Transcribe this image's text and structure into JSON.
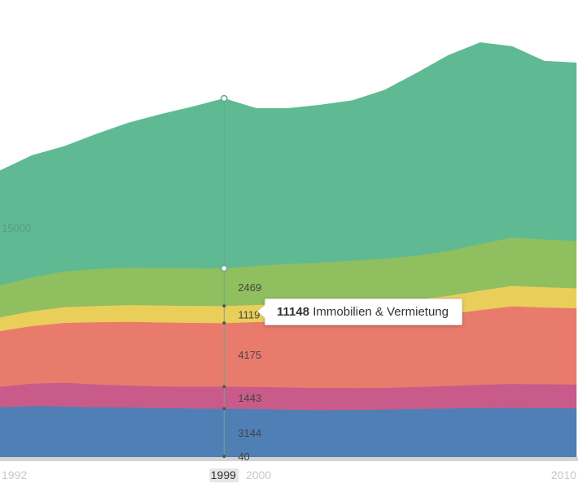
{
  "chart_data": {
    "type": "area",
    "stacked": true,
    "x": [
      1992,
      1993,
      1994,
      1995,
      1996,
      1997,
      1998,
      1999,
      2000,
      2001,
      2002,
      2003,
      2004,
      2005,
      2006,
      2007,
      2008,
      2009,
      2010
    ],
    "x_tick_labels": [
      "1992",
      "1999",
      "2000",
      "2010"
    ],
    "selected_x": "1999",
    "grid_labels": [
      "15000"
    ],
    "ylim": [
      0,
      30000
    ],
    "series": [
      {
        "color": "#4f7fb5",
        "values": [
          3280,
          3350,
          3330,
          3280,
          3260,
          3230,
          3200,
          3184,
          3170,
          3120,
          3090,
          3100,
          3130,
          3170,
          3200,
          3240,
          3250,
          3230,
          3220
        ]
      },
      {
        "color": "#c95b8a",
        "values": [
          1350,
          1480,
          1560,
          1500,
          1450,
          1420,
          1430,
          1443,
          1450,
          1460,
          1450,
          1440,
          1420,
          1440,
          1480,
          1520,
          1560,
          1560,
          1560
        ]
      },
      {
        "color": "#e97b6d",
        "values": [
          3650,
          3780,
          3930,
          4080,
          4180,
          4200,
          4190,
          4175,
          4250,
          4330,
          4390,
          4430,
          4500,
          4570,
          4700,
          4900,
          5090,
          5040,
          5000
        ]
      },
      {
        "color": "#e9cf5a",
        "values": [
          900,
          970,
          1030,
          1070,
          1100,
          1110,
          1115,
          1119,
          1130,
          1140,
          1140,
          1150,
          1160,
          1180,
          1210,
          1280,
          1350,
          1330,
          1310
        ]
      },
      {
        "color": "#8fbf5f",
        "values": [
          2100,
          2220,
          2340,
          2420,
          2460,
          2470,
          2470,
          2469,
          2560,
          2640,
          2700,
          2780,
          2820,
          2870,
          2950,
          3060,
          3170,
          3130,
          3100
        ]
      },
      {
        "name": "Immobilien & Vermietung",
        "color": "#5fba93",
        "values": [
          7520,
          8000,
          8200,
          8840,
          9480,
          10060,
          10580,
          11148,
          10330,
          10200,
          10340,
          10500,
          11050,
          11960,
          12830,
          13210,
          12530,
          11700,
          11690
        ]
      }
    ],
    "selected_values": [
      "3144",
      "1443",
      "4175",
      "1119",
      "2469",
      "11148"
    ],
    "bottom_value": "40"
  },
  "tooltip": {
    "value": "11148",
    "label": "Immobilien & Vermietung"
  }
}
